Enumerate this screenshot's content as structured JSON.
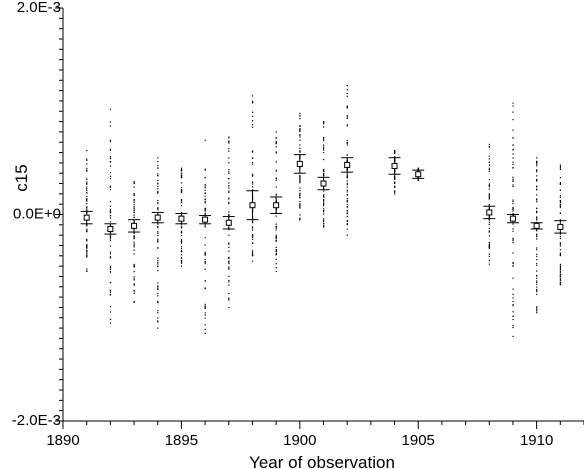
{
  "chart_data": {
    "type": "scatter",
    "title": "",
    "xlabel": "Year of observation",
    "ylabel": "c15",
    "xlim": [
      1890,
      1912
    ],
    "ylim": [
      -0.002,
      0.002
    ],
    "x_ticks": [
      1890,
      1895,
      1900,
      1905,
      1910
    ],
    "x_tick_labels": [
      "1890",
      "1895",
      "1900",
      "1905",
      "1910"
    ],
    "y_ticks": [
      -0.002,
      0.0,
      0.002
    ],
    "y_tick_labels": [
      "-2.0E-3",
      "0.0E+0",
      "2.0E-3"
    ],
    "grid": false,
    "legend": "none",
    "series": [
      {
        "points_summary": "annual means with error bars",
        "x": [
          1891,
          1892,
          1893,
          1894,
          1895,
          1896,
          1897,
          1898,
          1899,
          1900,
          1901,
          1902,
          1904,
          1905,
          1908,
          1909,
          1910,
          1911
        ],
        "mean": [
          -3e-05,
          -0.00014,
          -0.00011,
          -3e-05,
          -4e-05,
          -5e-05,
          -8e-05,
          9e-05,
          9e-05,
          0.00049,
          0.0003,
          0.00048,
          0.00047,
          0.00039,
          2e-05,
          -4e-05,
          -0.00011,
          -0.00012
        ],
        "err": [
          6e-05,
          5e-05,
          6e-05,
          5e-05,
          5e-05,
          4e-05,
          6e-05,
          0.00014,
          8e-05,
          9e-05,
          6e-05,
          7e-05,
          8e-05,
          4e-05,
          6e-05,
          4e-05,
          3e-05,
          6e-05
        ],
        "spread_min": [
          -0.00055,
          -0.00105,
          -0.00085,
          -0.0011,
          -0.0005,
          -0.00115,
          -0.0009,
          -0.00045,
          -0.00055,
          -5e-05,
          -0.00012,
          -0.0002,
          0.0002,
          0.00033,
          -0.00048,
          -0.00118,
          -0.00095,
          -0.00068
        ],
        "spread_max": [
          0.00062,
          0.00102,
          0.00032,
          0.00055,
          0.00045,
          0.00072,
          0.00075,
          0.00115,
          0.0008,
          0.00098,
          0.0009,
          0.00125,
          0.00062,
          0.00045,
          0.00068,
          0.00108,
          0.00055,
          0.00048
        ]
      }
    ]
  }
}
